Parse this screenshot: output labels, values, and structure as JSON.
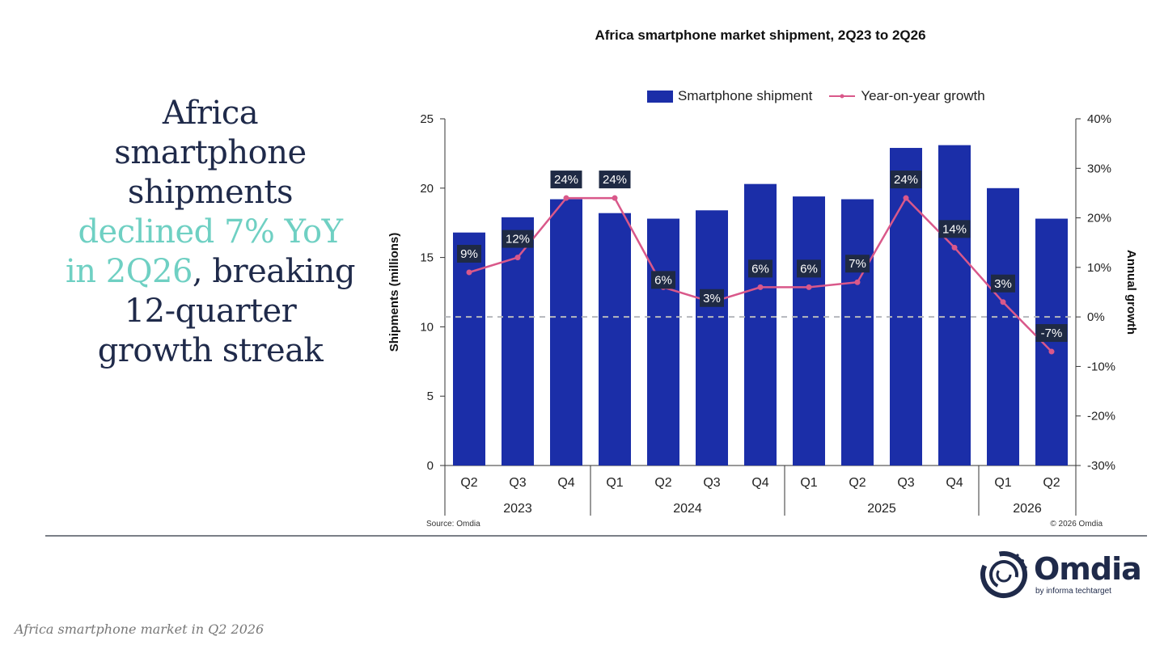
{
  "headline": {
    "line1": "Africa",
    "line2": "smartphone",
    "line3": "shipments",
    "line4_highlight": "declined 7% YoY",
    "line5_highlight": "in 2Q26",
    "line5_rest": ", breaking",
    "line6": "12-quarter",
    "line7": "growth streak"
  },
  "colors": {
    "bar": "#1b2ea8",
    "line": "#d9588a",
    "headline": "#1f2a4a",
    "highlight": "#6fd0c3",
    "label_box": "#1f2a44"
  },
  "chart_data": {
    "type": "bar",
    "title": "Africa smartphone market shipment, 2Q23 to 2Q26",
    "categories": [
      "Q2",
      "Q3",
      "Q4",
      "Q1",
      "Q2",
      "Q3",
      "Q4",
      "Q1",
      "Q2",
      "Q3",
      "Q4",
      "Q1",
      "Q2"
    ],
    "year_groups": [
      {
        "label": "2023",
        "count": 3
      },
      {
        "label": "2024",
        "count": 4
      },
      {
        "label": "2025",
        "count": 4
      },
      {
        "label": "2026",
        "count": 2
      }
    ],
    "series": [
      {
        "name": "Smartphone shipment",
        "type": "bar",
        "axis": "left",
        "values": [
          16.8,
          17.9,
          19.2,
          18.2,
          17.8,
          18.4,
          20.3,
          19.4,
          19.2,
          22.9,
          23.1,
          20.0,
          17.8
        ]
      },
      {
        "name": "Year-on-year growth",
        "type": "line",
        "axis": "right",
        "values": [
          9,
          12,
          24,
          24,
          6,
          3,
          6,
          6,
          7,
          24,
          14,
          3,
          -7
        ],
        "labels": [
          "9%",
          "12%",
          "24%",
          "24%",
          "6%",
          "3%",
          "6%",
          "6%",
          "7%",
          "24%",
          "14%",
          "3%",
          "-7%"
        ]
      }
    ],
    "ylabel": "Shipments (millions)",
    "ylim": [
      0,
      25
    ],
    "yticks": [
      "0",
      "5",
      "10",
      "15",
      "20",
      "25"
    ],
    "y2label": "Annual growth",
    "y2lim": [
      -30,
      40
    ],
    "y2ticks": [
      "-30%",
      "-20%",
      "-10%",
      "0%",
      "10%",
      "20%",
      "30%",
      "40%"
    ],
    "zero_growth_reference_line": true,
    "legend_position": "top-right",
    "source": "Source: Omdia",
    "copyright": "© 2026 Omdia"
  },
  "logo": {
    "name": "Omdia",
    "tagline": "by informa techtarget"
  },
  "caption": "Africa smartphone market in Q2 2026"
}
